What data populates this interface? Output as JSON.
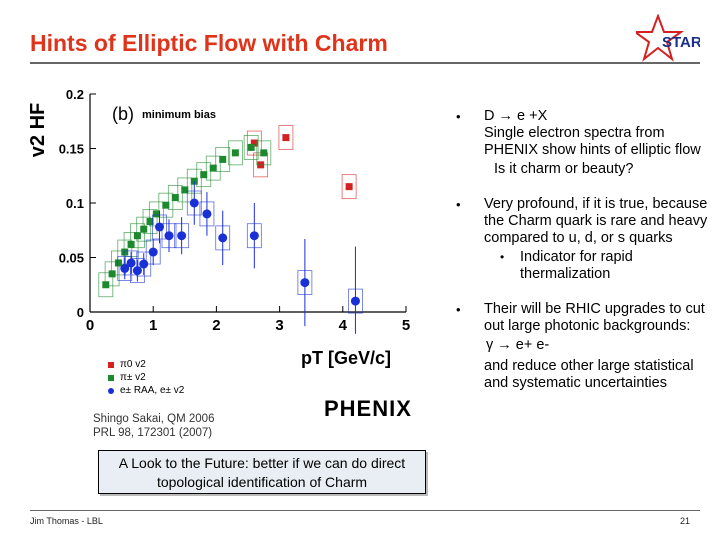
{
  "slide": {
    "title": "Hints of Elliptic Flow with Charm",
    "logo_text": "STAR",
    "footer": "Jim Thomas - LBL",
    "page_number": "21"
  },
  "chart_data": {
    "type": "scatter",
    "panel_label": "(b)",
    "panel_note": "minimum bias",
    "ylabel": "v2 HF",
    "xlabel": "pT [GeV/c]",
    "xlim": [
      0,
      5
    ],
    "ylim": [
      0,
      0.2
    ],
    "x_ticks": [
      "0",
      "1",
      "2",
      "3",
      "4",
      "5"
    ],
    "y_ticks": [
      "0",
      "0.05",
      "0.1",
      "0.15",
      "0.2"
    ],
    "series": [
      {
        "name": "π0 v2",
        "color": "#d42020",
        "marker": "square",
        "x": [
          2.6,
          2.7,
          3.1,
          4.1
        ],
        "y": [
          0.155,
          0.135,
          0.16,
          0.115
        ]
      },
      {
        "name": "π± v2",
        "color": "#1c8a2c",
        "marker": "square",
        "x": [
          0.25,
          0.35,
          0.45,
          0.55,
          0.65,
          0.75,
          0.85,
          0.95,
          1.05,
          1.2,
          1.35,
          1.5,
          1.65,
          1.8,
          1.95,
          2.1,
          2.3,
          2.55,
          2.75
        ],
        "y": [
          0.025,
          0.035,
          0.045,
          0.055,
          0.062,
          0.07,
          0.076,
          0.083,
          0.09,
          0.098,
          0.105,
          0.112,
          0.12,
          0.126,
          0.132,
          0.14,
          0.146,
          0.151,
          0.146
        ]
      },
      {
        "name": "e± RAA, e± v2",
        "color": "#1a2fd6",
        "marker": "circle",
        "x": [
          0.55,
          0.65,
          0.75,
          0.85,
          1.0,
          1.1,
          1.25,
          1.45,
          1.65,
          1.85,
          2.1,
          2.6,
          3.4,
          4.2
        ],
        "y": [
          0.04,
          0.045,
          0.038,
          0.044,
          0.055,
          0.078,
          0.07,
          0.07,
          0.1,
          0.09,
          0.068,
          0.07,
          0.027,
          0.01
        ],
        "yerr": [
          0.01,
          0.01,
          0.01,
          0.01,
          0.012,
          0.015,
          0.015,
          0.017,
          0.02,
          0.02,
          0.025,
          0.03,
          0.04,
          0.05
        ]
      }
    ]
  },
  "legend": {
    "items": [
      "π0 v2",
      "π± v2",
      "e± RAA, e± v2"
    ]
  },
  "credit": {
    "line1": "Shingo Sakai, QM 2006",
    "line2": "PRL 98, 172301 (2007)"
  },
  "experiment_logo": "PHENIX",
  "callout": "A Look to the Future: better if we can do direct topological identification of Charm",
  "bullets": {
    "b1_head": "D → e +X",
    "b1_text": "Single electron spectra from PHENIX show hints of elliptic flow",
    "b1_sub": "Is it charm or beauty?",
    "b2_text": "Very profound, if it is true, because the Charm quark is rare and heavy compared to u, d, or s quarks",
    "b2_sub": "Indicator for rapid thermalization",
    "b3_text": "Their will be RHIC upgrades to cut out large photonic backgrounds:",
    "b3_formula": "γ → e+ e-",
    "b3_tail": "and reduce other large statistical and systematic uncertainties",
    "bullet_glyph": "•"
  }
}
